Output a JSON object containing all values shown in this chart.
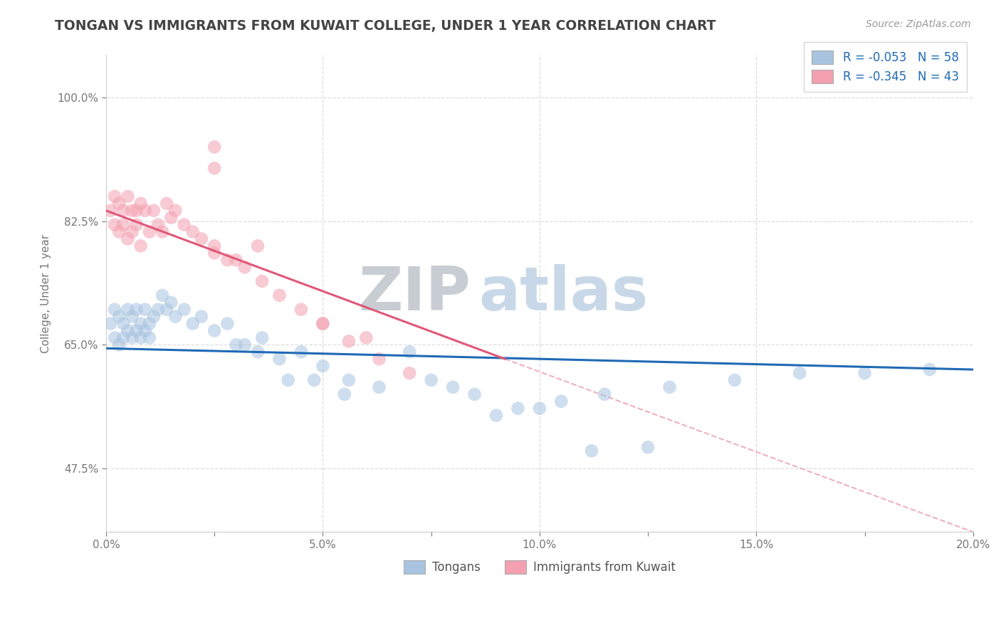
{
  "title": "TONGAN VS IMMIGRANTS FROM KUWAIT COLLEGE, UNDER 1 YEAR CORRELATION CHART",
  "source": "Source: ZipAtlas.com",
  "xlabel": "",
  "ylabel": "College, Under 1 year",
  "xmin": 0.0,
  "xmax": 0.2,
  "ymin": 0.385,
  "ymax": 1.06,
  "yticks": [
    0.475,
    0.65,
    0.825,
    1.0
  ],
  "ytick_labels": [
    "47.5%",
    "65.0%",
    "82.5%",
    "100.0%"
  ],
  "xticks": [
    0.0,
    0.025,
    0.05,
    0.075,
    0.1,
    0.125,
    0.15,
    0.175,
    0.2
  ],
  "xtick_labels": [
    "0.0%",
    "",
    "5.0%",
    "",
    "10.0%",
    "",
    "15.0%",
    "",
    "20.0%"
  ],
  "legend_blue_r": "R = -0.053",
  "legend_blue_n": "N = 58",
  "legend_pink_r": "R = -0.345",
  "legend_pink_n": "N = 43",
  "legend_blue_label": "Tongans",
  "legend_pink_label": "Immigrants from Kuwait",
  "blue_color": "#a8c4e0",
  "pink_color": "#f4a0b0",
  "blue_line_color": "#1f6ab5",
  "pink_line_color": "#e05878",
  "dash_line_color": "#f0b0be",
  "legend_text_color": "#1f6ab5",
  "title_color": "#444444",
  "grid_color": "#dddddd",
  "watermark_zip_color": "#c8cdd4",
  "watermark_atlas_color": "#c8d8e8",
  "blue_scatter_x": [
    0.001,
    0.002,
    0.002,
    0.003,
    0.003,
    0.004,
    0.004,
    0.005,
    0.005,
    0.006,
    0.006,
    0.007,
    0.007,
    0.008,
    0.008,
    0.009,
    0.009,
    0.01,
    0.01,
    0.011,
    0.012,
    0.013,
    0.014,
    0.015,
    0.016,
    0.018,
    0.02,
    0.022,
    0.025,
    0.028,
    0.032,
    0.036,
    0.04,
    0.045,
    0.05,
    0.056,
    0.063,
    0.07,
    0.08,
    0.09,
    0.1,
    0.112,
    0.125,
    0.075,
    0.085,
    0.095,
    0.105,
    0.115,
    0.13,
    0.145,
    0.16,
    0.175,
    0.19,
    0.03,
    0.035,
    0.042,
    0.048,
    0.055
  ],
  "blue_scatter_y": [
    0.68,
    0.7,
    0.66,
    0.69,
    0.65,
    0.68,
    0.66,
    0.7,
    0.67,
    0.69,
    0.66,
    0.7,
    0.67,
    0.68,
    0.66,
    0.7,
    0.67,
    0.68,
    0.66,
    0.69,
    0.7,
    0.72,
    0.7,
    0.71,
    0.69,
    0.7,
    0.68,
    0.69,
    0.67,
    0.68,
    0.65,
    0.66,
    0.63,
    0.64,
    0.62,
    0.6,
    0.59,
    0.64,
    0.59,
    0.55,
    0.56,
    0.5,
    0.505,
    0.6,
    0.58,
    0.56,
    0.57,
    0.58,
    0.59,
    0.6,
    0.61,
    0.61,
    0.615,
    0.65,
    0.64,
    0.6,
    0.6,
    0.58
  ],
  "pink_scatter_x": [
    0.001,
    0.002,
    0.002,
    0.003,
    0.003,
    0.004,
    0.004,
    0.005,
    0.005,
    0.006,
    0.006,
    0.007,
    0.007,
    0.008,
    0.008,
    0.009,
    0.01,
    0.011,
    0.012,
    0.013,
    0.014,
    0.015,
    0.016,
    0.018,
    0.02,
    0.022,
    0.025,
    0.028,
    0.032,
    0.036,
    0.04,
    0.045,
    0.05,
    0.056,
    0.063,
    0.07,
    0.025,
    0.03,
    0.035,
    0.05,
    0.06,
    0.025,
    0.025
  ],
  "pink_scatter_y": [
    0.84,
    0.86,
    0.82,
    0.85,
    0.81,
    0.84,
    0.82,
    0.86,
    0.8,
    0.84,
    0.81,
    0.84,
    0.82,
    0.85,
    0.79,
    0.84,
    0.81,
    0.84,
    0.82,
    0.81,
    0.85,
    0.83,
    0.84,
    0.82,
    0.81,
    0.8,
    0.79,
    0.77,
    0.76,
    0.74,
    0.72,
    0.7,
    0.68,
    0.655,
    0.63,
    0.61,
    0.78,
    0.77,
    0.79,
    0.68,
    0.66,
    0.9,
    0.93
  ],
  "blue_trend_x": [
    0.0,
    0.2
  ],
  "blue_trend_y": [
    0.645,
    0.615
  ],
  "pink_trend_x": [
    0.0,
    0.092
  ],
  "pink_trend_y": [
    0.84,
    0.63
  ],
  "dash_trend_x": [
    0.092,
    0.2
  ],
  "dash_trend_y": [
    0.63,
    0.385
  ]
}
